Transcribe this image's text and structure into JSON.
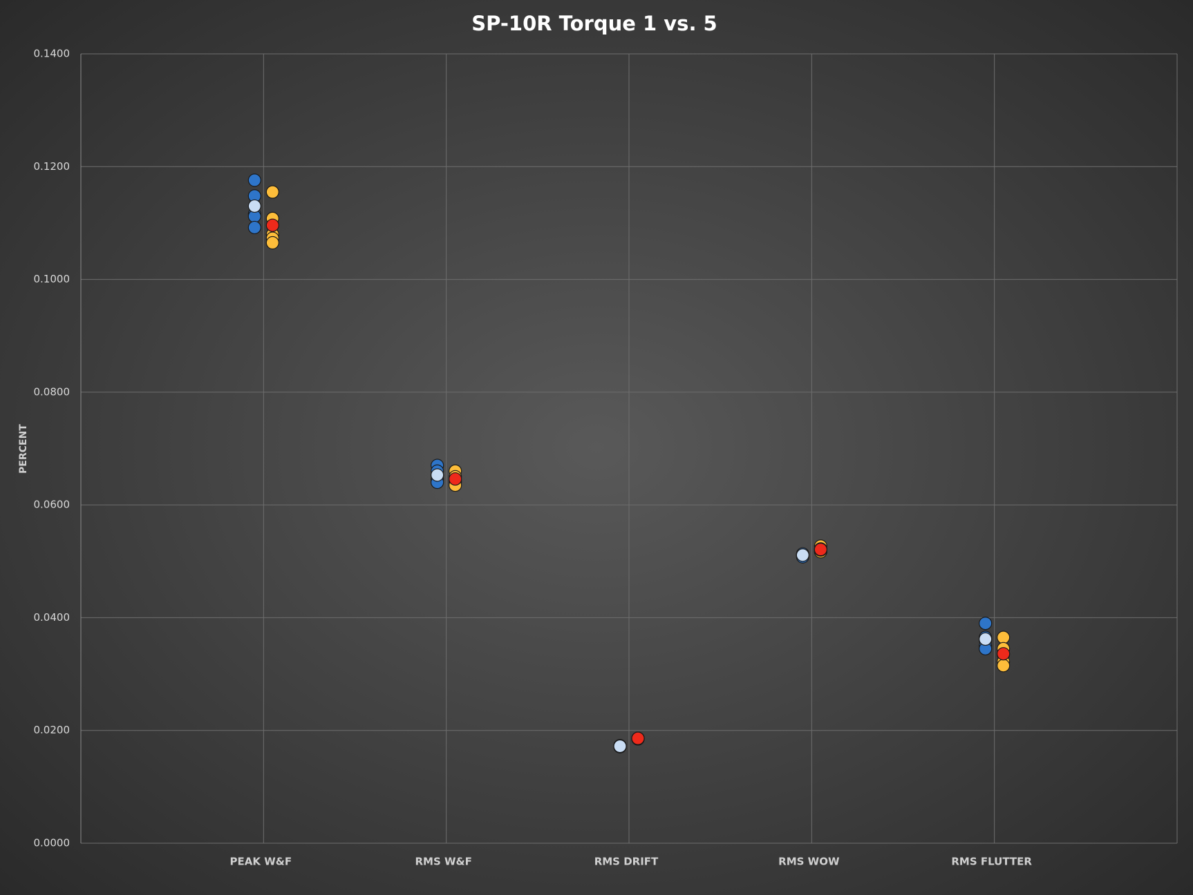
{
  "chart_data": {
    "type": "scatter",
    "title": "SP-10R Torque 1 vs. 5",
    "y_label": "PERCENT",
    "categories": [
      "PEAK W&F",
      "RMS W&F",
      "RMS DRIFT",
      "RMS WOW",
      "RMS FLUTTER"
    ],
    "ylim": [
      0,
      0.14
    ],
    "yticks": [
      {
        "value": 0,
        "label": "0.0000"
      },
      {
        "value": 0.02,
        "label": "0.0200"
      },
      {
        "value": 0.04,
        "label": "0.0400"
      },
      {
        "value": 0.06,
        "label": "0.0600"
      },
      {
        "value": 0.08,
        "label": "0.0800"
      },
      {
        "value": 0.1,
        "label": "0.1000"
      },
      {
        "value": 0.12,
        "label": "0.1200"
      },
      {
        "value": 0.14,
        "label": "0.1400"
      }
    ],
    "grid": true,
    "series": [
      {
        "color": "#2e75c9",
        "values": [
          0.1176,
          0.067,
          0.0173,
          0.0512,
          0.039
        ]
      },
      {
        "color": "#2e75c9",
        "values": [
          0.1148,
          0.066,
          0.0172,
          0.051,
          0.0365
        ]
      },
      {
        "color": "#2e75c9",
        "values": [
          0.1116,
          0.0652,
          0.0171,
          0.0508,
          0.036
        ]
      },
      {
        "color": "#2e75c9",
        "values": [
          0.1112,
          0.0645,
          0.0172,
          0.0512,
          0.035
        ]
      },
      {
        "color": "#2e75c9",
        "values": [
          0.1092,
          0.064,
          0.0172,
          0.0513,
          0.0345
        ]
      },
      {
        "color": "#c9ddf4",
        "values": [
          0.113,
          0.0653,
          0.0172,
          0.0511,
          0.0362
        ]
      },
      {
        "color": "#fdbd3a",
        "values": [
          0.1155,
          0.066,
          0.0186,
          0.0527,
          0.0365
        ]
      },
      {
        "color": "#fdbd3a",
        "values": [
          0.1108,
          0.065,
          0.0185,
          0.0522,
          0.0345
        ]
      },
      {
        "color": "#fdbd3a",
        "values": [
          0.108,
          0.0643,
          0.0186,
          0.0518,
          0.0335
        ]
      },
      {
        "color": "#fdbd3a",
        "values": [
          0.1073,
          0.064,
          0.0185,
          0.0517,
          0.0322
        ]
      },
      {
        "color": "#fdbd3a",
        "values": [
          0.1065,
          0.0635,
          0.0186,
          0.052,
          0.0315
        ]
      },
      {
        "color": "#ee2a1b",
        "values": [
          0.1096,
          0.0646,
          0.0186,
          0.0521,
          0.0336
        ]
      }
    ]
  }
}
